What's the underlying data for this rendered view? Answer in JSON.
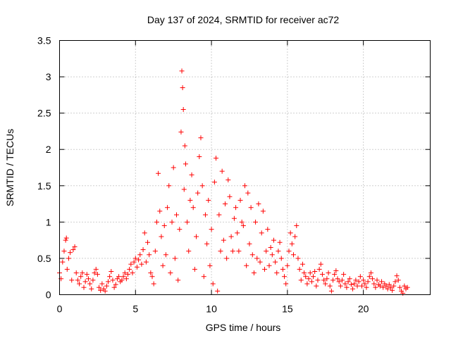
{
  "chart_data": {
    "type": "scatter",
    "title": "Day 137 of 2024, SRMTID for receiver ac72",
    "xlabel": "GPS time / hours",
    "ylabel": "SRMTID / TECUs",
    "xlim": [
      0,
      24.4
    ],
    "ylim": [
      0,
      3.5
    ],
    "xticks": [
      0,
      5,
      10,
      15,
      20
    ],
    "xtick_labels": [
      "0",
      "5",
      "10",
      "15",
      "20"
    ],
    "yticks": [
      0,
      0.5,
      1,
      1.5,
      2,
      2.5,
      3,
      3.5
    ],
    "ytick_labels": [
      "0",
      "0.5",
      "1",
      "1.5",
      "2",
      "2.5",
      "3",
      "3.5"
    ],
    "grid": true,
    "marker": "+",
    "color": "#ff0000",
    "series": [
      {
        "name": "SRMTID",
        "points": [
          [
            0.0,
            0.3
          ],
          [
            0.1,
            0.22
          ],
          [
            0.2,
            0.45
          ],
          [
            0.3,
            0.6
          ],
          [
            0.4,
            0.75
          ],
          [
            0.45,
            0.78
          ],
          [
            0.5,
            0.35
          ],
          [
            0.6,
            0.5
          ],
          [
            0.7,
            0.58
          ],
          [
            0.8,
            0.2
          ],
          [
            0.9,
            0.62
          ],
          [
            1.0,
            0.66
          ],
          [
            1.1,
            0.3
          ],
          [
            1.2,
            0.2
          ],
          [
            1.3,
            0.15
          ],
          [
            1.4,
            0.25
          ],
          [
            1.5,
            0.3
          ],
          [
            1.6,
            0.1
          ],
          [
            1.7,
            0.18
          ],
          [
            1.8,
            0.28
          ],
          [
            1.9,
            0.22
          ],
          [
            2.0,
            0.15
          ],
          [
            2.1,
            0.08
          ],
          [
            2.2,
            0.2
          ],
          [
            2.3,
            0.3
          ],
          [
            2.4,
            0.35
          ],
          [
            2.5,
            0.28
          ],
          [
            2.6,
            0.1
          ],
          [
            2.7,
            0.06
          ],
          [
            2.8,
            0.15
          ],
          [
            2.9,
            0.08
          ],
          [
            3.0,
            0.05
          ],
          [
            3.1,
            0.12
          ],
          [
            3.2,
            0.18
          ],
          [
            3.3,
            0.25
          ],
          [
            3.4,
            0.32
          ],
          [
            3.5,
            0.2
          ],
          [
            3.6,
            0.1
          ],
          [
            3.7,
            0.14
          ],
          [
            3.8,
            0.22
          ],
          [
            3.9,
            0.25
          ],
          [
            4.0,
            0.18
          ],
          [
            4.1,
            0.2
          ],
          [
            4.2,
            0.25
          ],
          [
            4.3,
            0.3
          ],
          [
            4.4,
            0.22
          ],
          [
            4.5,
            0.28
          ],
          [
            4.6,
            0.35
          ],
          [
            4.7,
            0.42
          ],
          [
            4.8,
            0.3
          ],
          [
            4.9,
            0.45
          ],
          [
            5.0,
            0.5
          ],
          [
            5.1,
            0.38
          ],
          [
            5.2,
            0.48
          ],
          [
            5.3,
            0.55
          ],
          [
            5.4,
            0.42
          ],
          [
            5.5,
            0.62
          ],
          [
            5.6,
            0.85
          ],
          [
            5.7,
            0.45
          ],
          [
            5.8,
            0.72
          ],
          [
            5.9,
            0.55
          ],
          [
            6.0,
            0.3
          ],
          [
            6.1,
            0.25
          ],
          [
            6.2,
            0.15
          ],
          [
            6.3,
            0.6
          ],
          [
            6.4,
            1.0
          ],
          [
            6.5,
            1.67
          ],
          [
            6.6,
            1.15
          ],
          [
            6.7,
            0.8
          ],
          [
            6.8,
            0.4
          ],
          [
            6.9,
            0.95
          ],
          [
            7.0,
            0.55
          ],
          [
            7.1,
            1.2
          ],
          [
            7.2,
            1.5
          ],
          [
            7.3,
            0.3
          ],
          [
            7.4,
            1.0
          ],
          [
            7.5,
            1.75
          ],
          [
            7.6,
            0.5
          ],
          [
            7.7,
            1.1
          ],
          [
            7.8,
            0.2
          ],
          [
            7.9,
            0.9
          ],
          [
            8.0,
            2.24
          ],
          [
            8.05,
            3.08
          ],
          [
            8.1,
            2.85
          ],
          [
            8.15,
            2.55
          ],
          [
            8.2,
            1.45
          ],
          [
            8.25,
            2.05
          ],
          [
            8.3,
            1.8
          ],
          [
            8.4,
            1.0
          ],
          [
            8.5,
            0.6
          ],
          [
            8.6,
            1.3
          ],
          [
            8.7,
            1.65
          ],
          [
            8.8,
            1.2
          ],
          [
            8.9,
            0.35
          ],
          [
            9.0,
            0.8
          ],
          [
            9.1,
            1.4
          ],
          [
            9.2,
            1.9
          ],
          [
            9.3,
            2.16
          ],
          [
            9.4,
            1.5
          ],
          [
            9.5,
            0.25
          ],
          [
            9.6,
            1.1
          ],
          [
            9.7,
            0.7
          ],
          [
            9.8,
            1.3
          ],
          [
            9.9,
            0.4
          ],
          [
            10.0,
            0.9
          ],
          [
            10.1,
            0.15
          ],
          [
            10.2,
            1.55
          ],
          [
            10.3,
            1.88
          ],
          [
            10.4,
            0.05
          ],
          [
            10.5,
            1.1
          ],
          [
            10.6,
            0.6
          ],
          [
            10.7,
            1.7
          ],
          [
            10.8,
            0.75
          ],
          [
            10.9,
            1.25
          ],
          [
            11.0,
            0.5
          ],
          [
            11.1,
            1.58
          ],
          [
            11.2,
            1.35
          ],
          [
            11.3,
            0.8
          ],
          [
            11.4,
            0.6
          ],
          [
            11.5,
            1.05
          ],
          [
            11.6,
            1.2
          ],
          [
            11.7,
            0.85
          ],
          [
            11.8,
            0.6
          ],
          [
            11.9,
            1.3
          ],
          [
            12.0,
            1.0
          ],
          [
            12.1,
            0.95
          ],
          [
            12.2,
            1.5
          ],
          [
            12.3,
            0.4
          ],
          [
            12.4,
            1.4
          ],
          [
            12.5,
            0.7
          ],
          [
            12.6,
            1.2
          ],
          [
            12.7,
            0.55
          ],
          [
            12.8,
            0.3
          ],
          [
            12.9,
            1.0
          ],
          [
            13.0,
            0.5
          ],
          [
            13.1,
            1.25
          ],
          [
            13.2,
            0.45
          ],
          [
            13.3,
            0.85
          ],
          [
            13.4,
            1.15
          ],
          [
            13.5,
            0.35
          ],
          [
            13.6,
            0.6
          ],
          [
            13.7,
            0.9
          ],
          [
            13.8,
            0.4
          ],
          [
            13.9,
            0.65
          ],
          [
            14.0,
            0.55
          ],
          [
            14.1,
            0.75
          ],
          [
            14.2,
            0.45
          ],
          [
            14.3,
            0.3
          ],
          [
            14.4,
            0.6
          ],
          [
            14.5,
            0.72
          ],
          [
            14.6,
            0.5
          ],
          [
            14.7,
            0.35
          ],
          [
            14.8,
            0.25
          ],
          [
            14.9,
            0.15
          ],
          [
            15.0,
            0.4
          ],
          [
            15.1,
            0.6
          ],
          [
            15.2,
            0.85
          ],
          [
            15.3,
            0.7
          ],
          [
            15.4,
            0.55
          ],
          [
            15.5,
            0.8
          ],
          [
            15.6,
            0.95
          ],
          [
            15.7,
            0.5
          ],
          [
            15.8,
            0.35
          ],
          [
            15.9,
            0.2
          ],
          [
            16.0,
            0.42
          ],
          [
            16.1,
            0.3
          ],
          [
            16.2,
            0.25
          ],
          [
            16.3,
            0.15
          ],
          [
            16.4,
            0.22
          ],
          [
            16.5,
            0.3
          ],
          [
            16.6,
            0.18
          ],
          [
            16.7,
            0.25
          ],
          [
            16.8,
            0.32
          ],
          [
            16.9,
            0.12
          ],
          [
            17.0,
            0.2
          ],
          [
            17.1,
            0.35
          ],
          [
            17.2,
            0.42
          ],
          [
            17.3,
            0.28
          ],
          [
            17.4,
            0.2
          ],
          [
            17.5,
            0.15
          ],
          [
            17.6,
            0.22
          ],
          [
            17.7,
            0.3
          ],
          [
            17.8,
            0.12
          ],
          [
            17.9,
            0.05
          ],
          [
            18.0,
            0.2
          ],
          [
            18.1,
            0.28
          ],
          [
            18.2,
            0.33
          ],
          [
            18.3,
            0.22
          ],
          [
            18.4,
            0.18
          ],
          [
            18.5,
            0.12
          ],
          [
            18.6,
            0.2
          ],
          [
            18.7,
            0.28
          ],
          [
            18.8,
            0.15
          ],
          [
            18.9,
            0.1
          ],
          [
            19.0,
            0.18
          ],
          [
            19.1,
            0.22
          ],
          [
            19.2,
            0.14
          ],
          [
            19.3,
            0.08
          ],
          [
            19.4,
            0.15
          ],
          [
            19.5,
            0.2
          ],
          [
            19.6,
            0.12
          ],
          [
            19.7,
            0.18
          ],
          [
            19.8,
            0.25
          ],
          [
            19.9,
            0.12
          ],
          [
            20.0,
            0.2
          ],
          [
            20.1,
            0.15
          ],
          [
            20.2,
            0.1
          ],
          [
            20.3,
            0.18
          ],
          [
            20.4,
            0.25
          ],
          [
            20.5,
            0.3
          ],
          [
            20.6,
            0.22
          ],
          [
            20.7,
            0.15
          ],
          [
            20.8,
            0.1
          ],
          [
            20.9,
            0.2
          ],
          [
            21.0,
            0.14
          ],
          [
            21.1,
            0.12
          ],
          [
            21.2,
            0.18
          ],
          [
            21.3,
            0.1
          ],
          [
            21.4,
            0.15
          ],
          [
            21.5,
            0.12
          ],
          [
            21.6,
            0.08
          ],
          [
            21.7,
            0.14
          ],
          [
            21.8,
            0.1
          ],
          [
            21.9,
            0.06
          ],
          [
            22.0,
            0.12
          ],
          [
            22.1,
            0.18
          ],
          [
            22.2,
            0.26
          ],
          [
            22.3,
            0.2
          ],
          [
            22.4,
            0.1
          ],
          [
            22.5,
            0.05
          ],
          [
            22.6,
            0.02
          ],
          [
            22.7,
            0.12
          ],
          [
            22.8,
            0.08
          ],
          [
            22.9,
            0.1
          ]
        ]
      }
    ]
  }
}
